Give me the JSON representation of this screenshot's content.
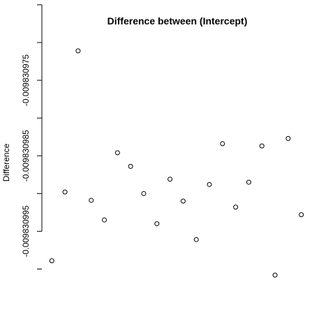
{
  "chart_data": {
    "type": "scatter",
    "title": "Difference between (Intercept)",
    "xlabel": "",
    "ylabel": "Difference",
    "y_ticks": [
      -0.00983097,
      -0.00983098,
      -0.00983099
    ],
    "y_tick_labels": [
      "-0.009830975",
      "-0.009830985",
      "-0.009830995"
    ],
    "x_axis_shown": false,
    "ylim": [
      -0.0098309958,
      -0.0098309661
    ],
    "points": [
      {
        "x": 1,
        "y": -0.0098309939
      },
      {
        "x": 2,
        "y": -0.0098309848
      },
      {
        "x": 3,
        "y": -0.0098309661
      },
      {
        "x": 4,
        "y": -0.0098309859
      },
      {
        "x": 5,
        "y": -0.0098309885
      },
      {
        "x": 6,
        "y": -0.0098309796
      },
      {
        "x": 7,
        "y": -0.0098309814
      },
      {
        "x": 8,
        "y": -0.009830985
      },
      {
        "x": 9,
        "y": -0.009830989
      },
      {
        "x": 10,
        "y": -0.0098309831
      },
      {
        "x": 11,
        "y": -0.009830986
      },
      {
        "x": 12,
        "y": -0.0098309911
      },
      {
        "x": 13,
        "y": -0.0098309838
      },
      {
        "x": 14,
        "y": -0.0098309784
      },
      {
        "x": 15,
        "y": -0.0098309868
      },
      {
        "x": 16,
        "y": -0.0098309835
      },
      {
        "x": 17,
        "y": -0.0098309787
      },
      {
        "x": 18,
        "y": -0.0098309958
      },
      {
        "x": 19,
        "y": -0.0098309777
      },
      {
        "x": 20,
        "y": -0.0098309878
      }
    ]
  }
}
